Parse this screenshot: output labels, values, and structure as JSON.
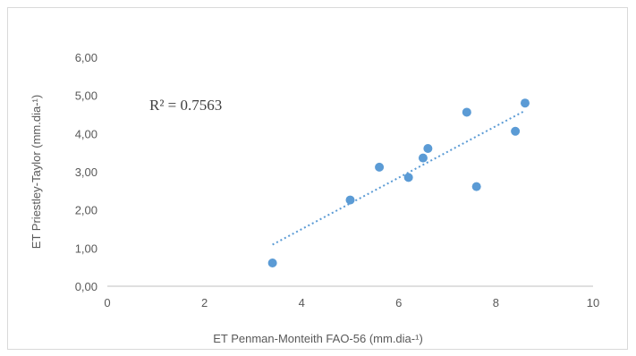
{
  "chart_data": {
    "type": "scatter",
    "title": "",
    "xlabel": "ET Penman-Monteith FAO-56 (mm.dia-¹)",
    "ylabel": "ET Priestley-Taylor (mm.dia-¹)",
    "xlim": [
      0,
      10
    ],
    "ylim": [
      0,
      6
    ],
    "x_ticks": [
      "0",
      "2",
      "4",
      "6",
      "8",
      "10"
    ],
    "y_ticks": [
      "0,00",
      "1,00",
      "2,00",
      "3,00",
      "4,00",
      "5,00",
      "6,00"
    ],
    "grid": false,
    "legend": "none",
    "annotation": "R² = 0.7563",
    "series": [
      {
        "color": "#5b9bd5",
        "x": [
          3.4,
          5.0,
          5.6,
          6.2,
          6.5,
          6.6,
          7.4,
          7.6,
          8.4,
          8.6
        ],
        "y": [
          0.61,
          2.26,
          3.12,
          2.85,
          3.36,
          3.61,
          4.56,
          2.61,
          4.06,
          4.8
        ]
      }
    ],
    "trendline": {
      "type": "linear",
      "style": "dotted",
      "color": "#5b9bd5",
      "x": [
        3.4,
        8.6
      ],
      "y": [
        1.09,
        4.6
      ]
    }
  }
}
